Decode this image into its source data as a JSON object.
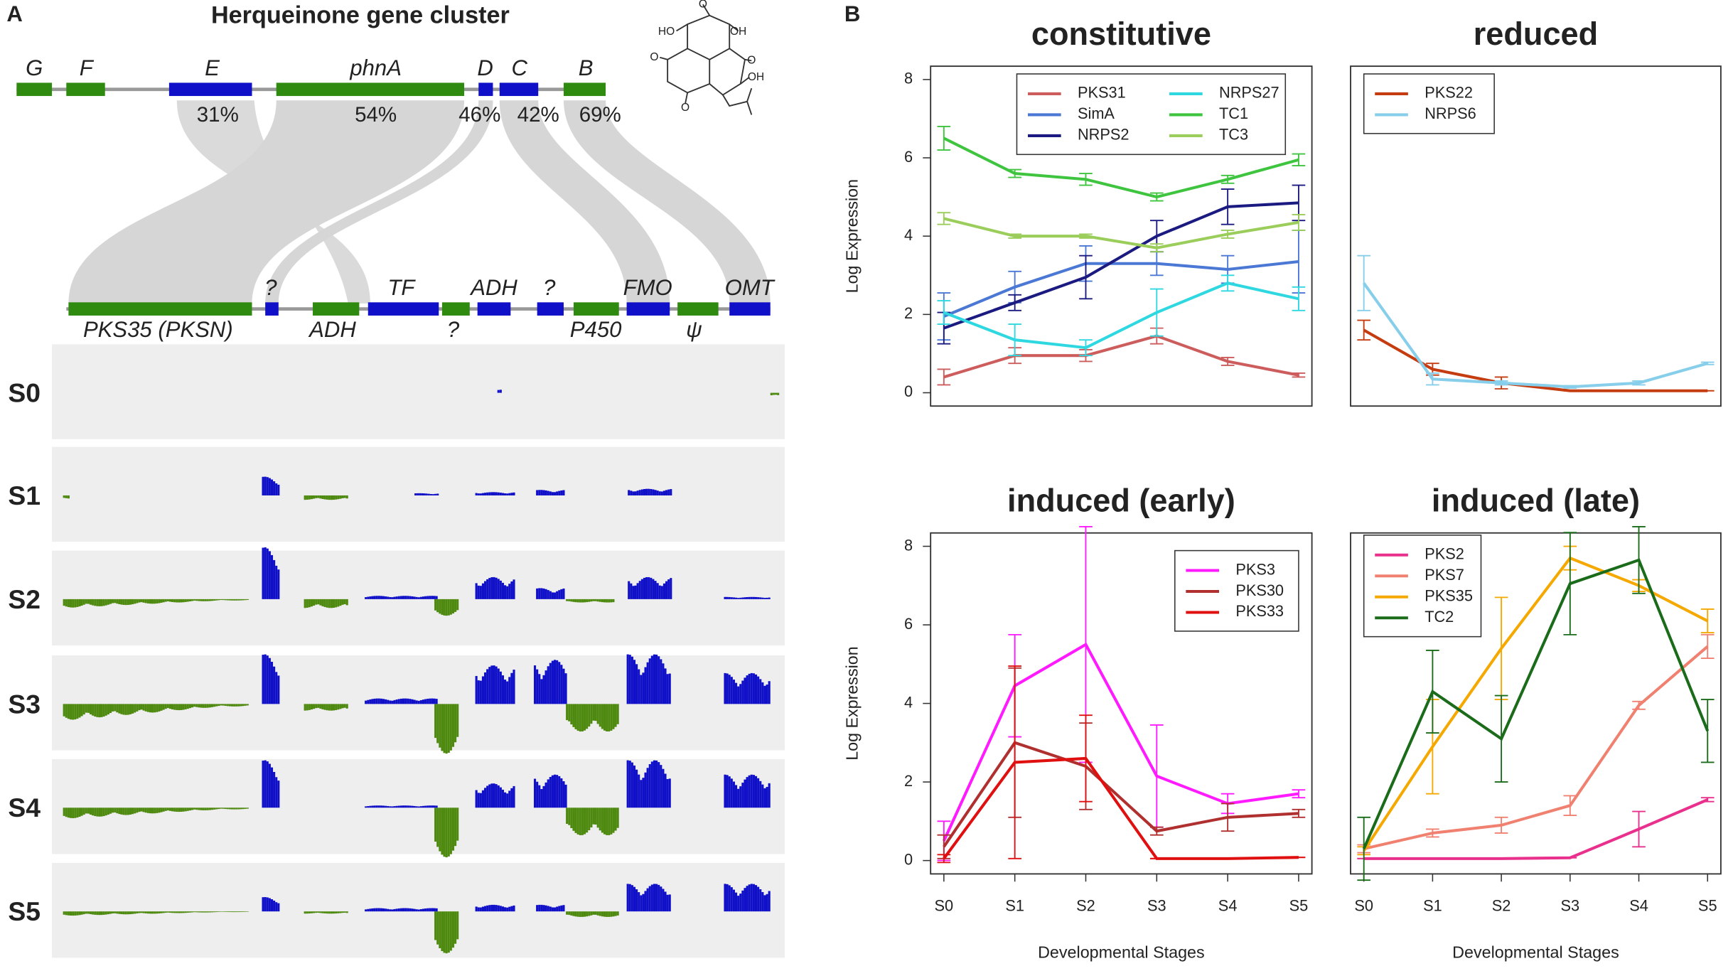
{
  "panel_a": {
    "label": "A",
    "title": "Herqueinone gene cluster",
    "top_genes": [
      "G",
      "F",
      "E",
      "phnA",
      "D",
      "C",
      "B"
    ],
    "top_percentages": [
      "31%",
      "54%",
      "46%",
      "42%",
      "69%"
    ],
    "bottom_genes_above": [
      "?",
      "TF",
      "ADH",
      "?",
      "FMO",
      "OMT"
    ],
    "bottom_genes_below": [
      "PKS35 (PKSN)",
      "ADH",
      "?",
      "P450",
      "ψ"
    ],
    "structure_labels": [
      "O",
      "HO",
      "OH",
      "O",
      "O",
      "OH",
      "O"
    ],
    "tracks": [
      "S0",
      "S1",
      "S2",
      "S3",
      "S4",
      "S5"
    ]
  },
  "panel_b_label": "B",
  "chart_data": [
    {
      "type": "line",
      "title": "constitutive",
      "ylabel": "Log Expression",
      "ylim": [
        -0.34,
        8.34
      ],
      "yticks": [
        0,
        2,
        4,
        6,
        8
      ],
      "legend": "top",
      "series": [
        {
          "name": "PKS31",
          "color": "#cd5c5c",
          "values": [
            0.4,
            0.95,
            0.95,
            1.45,
            0.8,
            0.45
          ],
          "errors": [
            0.2,
            0.2,
            0.15,
            0.2,
            0.1,
            0.05
          ]
        },
        {
          "name": "SimA",
          "color": "#4a78d4",
          "values": [
            1.95,
            2.7,
            3.3,
            3.3,
            3.15,
            3.35
          ],
          "errors": [
            0.6,
            0.4,
            0.45,
            0.3,
            0.35,
            0.8
          ]
        },
        {
          "name": "NRPS2",
          "color": "#1a1a80",
          "values": [
            1.65,
            2.3,
            2.95,
            4.0,
            4.75,
            4.85
          ],
          "errors": [
            0.4,
            0.2,
            0.55,
            0.4,
            0.45,
            0.45
          ]
        },
        {
          "name": "NRPS27",
          "color": "#2fd8e0",
          "values": [
            2.05,
            1.35,
            1.15,
            2.05,
            2.8,
            2.4
          ],
          "errors": [
            0.3,
            0.4,
            0.2,
            0.6,
            0.2,
            0.3
          ]
        },
        {
          "name": "TC1",
          "color": "#3ec43e",
          "values": [
            6.5,
            5.6,
            5.45,
            5.0,
            5.45,
            5.95
          ],
          "errors": [
            0.3,
            0.1,
            0.15,
            0.1,
            0.1,
            0.15
          ]
        },
        {
          "name": "TC3",
          "color": "#9acd5a",
          "values": [
            4.45,
            4.0,
            4.0,
            3.7,
            4.05,
            4.35
          ],
          "errors": [
            0.15,
            0.05,
            0.05,
            0.1,
            0.1,
            0.2
          ]
        }
      ]
    },
    {
      "type": "line",
      "title": "reduced",
      "ylim": [
        -0.34,
        8.34
      ],
      "legend": "top-left",
      "series": [
        {
          "name": "PKS22",
          "color": "#c43c10",
          "values": [
            1.6,
            0.6,
            0.25,
            0.05,
            0.05,
            0.05
          ],
          "errors": [
            0.25,
            0.15,
            0.15,
            0,
            0,
            0
          ]
        },
        {
          "name": "NRPS6",
          "color": "#87ceeb",
          "values": [
            2.8,
            0.35,
            0.25,
            0.15,
            0.25,
            0.75
          ],
          "errors": [
            0.7,
            0.15,
            0.05,
            0.03,
            0.05,
            0.03
          ]
        }
      ]
    },
    {
      "type": "line",
      "title": "induced (early)",
      "ylabel": "Log Expression",
      "xlabel": "Developmental Stages",
      "categories": [
        "S0",
        "S1",
        "S2",
        "S3",
        "S4",
        "S5"
      ],
      "ylim": [
        -0.34,
        8.34
      ],
      "yticks": [
        0,
        2,
        4,
        6,
        8
      ],
      "legend": "top-right",
      "series": [
        {
          "name": "PKS3",
          "color": "#ff1aff",
          "values": [
            0.5,
            4.45,
            5.5,
            2.15,
            1.45,
            1.7
          ],
          "errors": [
            0.5,
            1.3,
            3.0,
            1.3,
            0.25,
            0.1
          ]
        },
        {
          "name": "PKS30",
          "color": "#b03030",
          "values": [
            0.35,
            3.0,
            2.4,
            0.75,
            1.1,
            1.2
          ],
          "errors": [
            0.3,
            1.9,
            1.1,
            0.1,
            0.35,
            0.1
          ]
        },
        {
          "name": "PKS33",
          "color": "#e01010",
          "values": [
            0.05,
            2.5,
            2.6,
            0.05,
            0.05,
            0.08
          ],
          "errors": [
            0.1,
            2.45,
            1.1,
            0,
            0,
            0
          ]
        }
      ]
    },
    {
      "type": "line",
      "title": "induced (late)",
      "xlabel": "Developmental Stages",
      "categories": [
        "S0",
        "S1",
        "S2",
        "S3",
        "S4",
        "S5"
      ],
      "ylim": [
        -0.34,
        8.34
      ],
      "legend": "top-left",
      "series": [
        {
          "name": "PKS2",
          "color": "#e8308c",
          "values": [
            0.05,
            0.05,
            0.05,
            0.07,
            0.8,
            1.55
          ],
          "errors": [
            0,
            0,
            0,
            0,
            0.45,
            0.05
          ]
        },
        {
          "name": "PKS7",
          "color": "#f08070",
          "values": [
            0.3,
            0.7,
            0.9,
            1.4,
            3.95,
            5.45
          ],
          "errors": [
            0.1,
            0.1,
            0.2,
            0.25,
            0.1,
            0.3
          ]
        },
        {
          "name": "PKS35",
          "color": "#f5a800",
          "values": [
            0.25,
            2.9,
            5.4,
            7.7,
            7.0,
            6.1
          ],
          "errors": [
            0.1,
            1.2,
            1.3,
            0.3,
            0.15,
            0.3
          ]
        },
        {
          "name": "TC2",
          "color": "#1a6b1a",
          "values": [
            0.3,
            4.3,
            3.1,
            7.05,
            7.65,
            3.3
          ],
          "errors": [
            0.8,
            1.05,
            1.1,
            1.3,
            0.85,
            0.8
          ]
        }
      ]
    }
  ]
}
